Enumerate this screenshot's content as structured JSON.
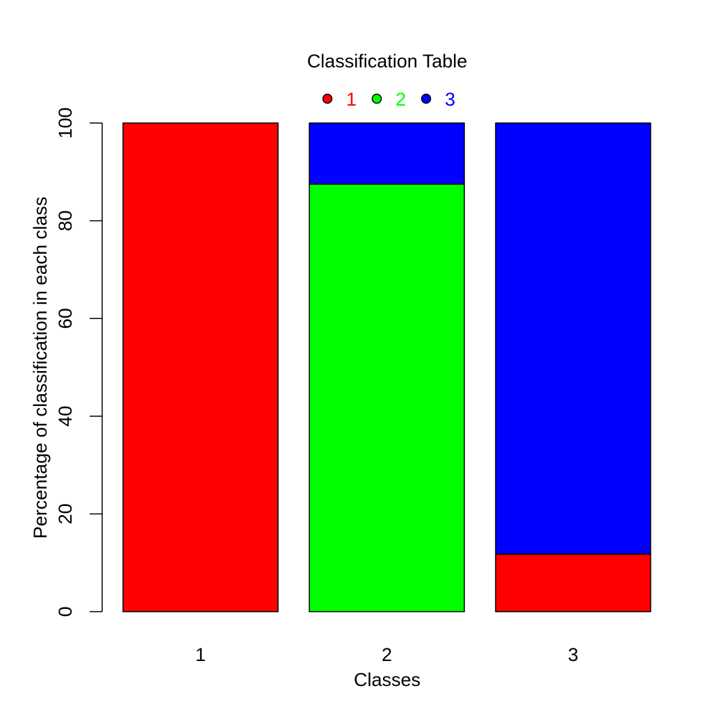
{
  "chart_data": {
    "type": "bar",
    "stacked": true,
    "title": "Classification Table",
    "xlabel": "Classes",
    "ylabel": "Percentage of classification in each class",
    "categories": [
      "1",
      "2",
      "3"
    ],
    "ylim": [
      0,
      100
    ],
    "yticks": [
      "0",
      "20",
      "40",
      "60",
      "80",
      "100"
    ],
    "legend_placement": "top-center",
    "grid": false,
    "series": [
      {
        "name": "1",
        "color": "#ff0000",
        "values": [
          100,
          0,
          11.8
        ]
      },
      {
        "name": "2",
        "color": "#00ff00",
        "values": [
          0,
          87.5,
          0
        ]
      },
      {
        "name": "3",
        "color": "#0000ff",
        "values": [
          0,
          12.5,
          88.2
        ]
      }
    ]
  }
}
